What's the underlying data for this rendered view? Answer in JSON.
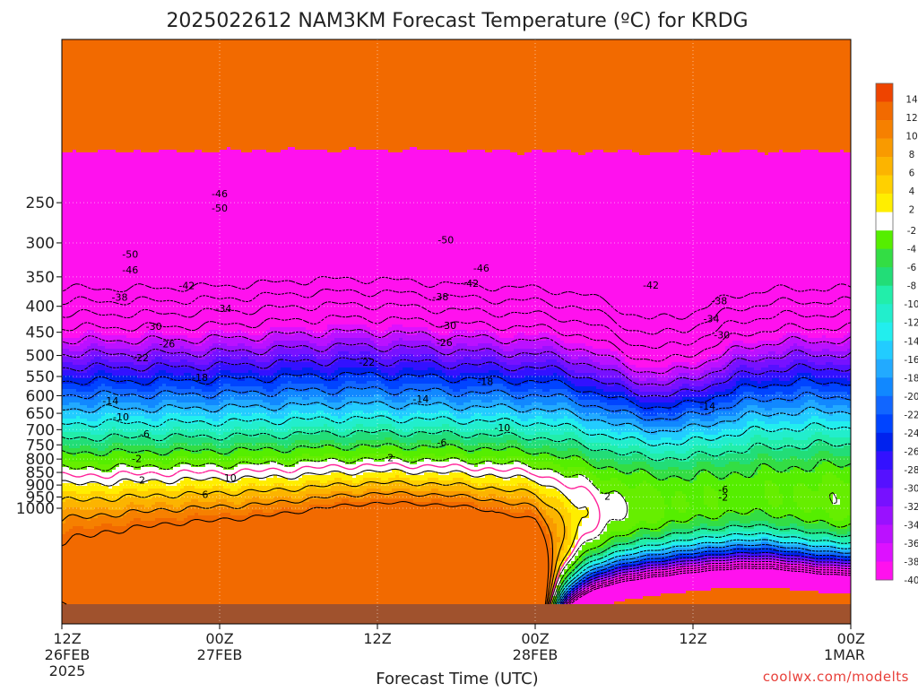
{
  "chart_data": {
    "type": "heatmap",
    "title": "2025022612 NAM3KM Forecast Temperature (ºC) for KRDG",
    "xlabel": "Forecast Time (UTC)",
    "ylabel": "",
    "watermark": "coolwx.com/modelts",
    "x_ticks": [
      {
        "hour": 0,
        "lines": [
          "12Z",
          "26FEB",
          "2025"
        ]
      },
      {
        "hour": 12,
        "lines": [
          "00Z",
          "27FEB"
        ]
      },
      {
        "hour": 24,
        "lines": [
          "12Z"
        ]
      },
      {
        "hour": 36,
        "lines": [
          "00Z",
          "28FEB"
        ]
      },
      {
        "hour": 48,
        "lines": [
          "12Z"
        ]
      },
      {
        "hour": 60,
        "lines": [
          "00Z",
          "1MAR"
        ]
      }
    ],
    "y_scale": "log",
    "y_ticks": [
      250,
      300,
      350,
      400,
      450,
      500,
      550,
      600,
      650,
      700,
      750,
      800,
      850,
      900,
      950,
      1000
    ],
    "colorbar": {
      "labels": [
        "14",
        "12",
        "10",
        "8",
        "6",
        "4",
        "2",
        "-2",
        "-4",
        "-6",
        "-8",
        "-10",
        "-12",
        "-14",
        "-16",
        "-18",
        "-20",
        "-22",
        "-24",
        "-26",
        "-28",
        "-30",
        "-32",
        "-34",
        "-36",
        "-38",
        "-40"
      ],
      "colors": [
        "#ee4400",
        "#f26a00",
        "#f68000",
        "#f99a00",
        "#fcb400",
        "#ffd000",
        "#ffee00",
        "#ffffff",
        "#55ee00",
        "#33dd44",
        "#22dd77",
        "#22eeaa",
        "#22eecc",
        "#22eeee",
        "#22ccff",
        "#22aaff",
        "#1188ff",
        "#1166ff",
        "#0044ff",
        "#0022ee",
        "#3311ff",
        "#5511ff",
        "#7711ff",
        "#9911ff",
        "#bb11ff",
        "#dd11ff",
        "#ff11ee"
      ]
    },
    "fill_bands": [
      {
        "from": -100,
        "to": -40,
        "color": "#ff11ee"
      },
      {
        "from": -40,
        "to": -38,
        "color": "#dd11ff"
      },
      {
        "from": -38,
        "to": -36,
        "color": "#bb11ff"
      },
      {
        "from": -36,
        "to": -34,
        "color": "#9911ff"
      },
      {
        "from": -34,
        "to": -32,
        "color": "#7711ff"
      },
      {
        "from": -32,
        "to": -30,
        "color": "#5511ff"
      },
      {
        "from": -30,
        "to": -28,
        "color": "#3311ff"
      },
      {
        "from": -28,
        "to": -26,
        "color": "#0022ee"
      },
      {
        "from": -26,
        "to": -24,
        "color": "#0044ff"
      },
      {
        "from": -24,
        "to": -22,
        "color": "#1166ff"
      },
      {
        "from": -22,
        "to": -20,
        "color": "#1188ff"
      },
      {
        "from": -20,
        "to": -18,
        "color": "#22aaff"
      },
      {
        "from": -18,
        "to": -16,
        "color": "#22ccff"
      },
      {
        "from": -16,
        "to": -14,
        "color": "#22eeee"
      },
      {
        "from": -14,
        "to": -12,
        "color": "#22eecc"
      },
      {
        "from": -12,
        "to": -10,
        "color": "#22eeaa"
      },
      {
        "from": -10,
        "to": -8,
        "color": "#22dd77"
      },
      {
        "from": -8,
        "to": -6,
        "color": "#33dd44"
      },
      {
        "from": -6,
        "to": -4,
        "color": "#55ee00"
      },
      {
        "from": -4,
        "to": -2,
        "color": "#66ee00"
      },
      {
        "from": -2,
        "to": 2,
        "color": "#ffffff"
      },
      {
        "from": 2,
        "to": 4,
        "color": "#ffee00"
      },
      {
        "from": 4,
        "to": 6,
        "color": "#ffd000"
      },
      {
        "from": 6,
        "to": 8,
        "color": "#fcb400"
      },
      {
        "from": 8,
        "to": 10,
        "color": "#f99a00"
      },
      {
        "from": 10,
        "to": 12,
        "color": "#f68000"
      },
      {
        "from": 12,
        "to": 100,
        "color": "#f26a00"
      }
    ],
    "ground_color": "#a0522d",
    "freezing_line_color": "#ff2299",
    "contour_labels": [
      {
        "t": 12,
        "p": 240,
        "v": "-46"
      },
      {
        "t": 12,
        "p": 256,
        "v": "-50"
      },
      {
        "t": 5.2,
        "p": 316,
        "v": "-50"
      },
      {
        "t": 5.2,
        "p": 339,
        "v": "-46"
      },
      {
        "t": 9.5,
        "p": 364,
        "v": "-42"
      },
      {
        "t": 4.4,
        "p": 384,
        "v": "-38"
      },
      {
        "t": 12.3,
        "p": 404,
        "v": "-34"
      },
      {
        "t": 7,
        "p": 438,
        "v": "-30"
      },
      {
        "t": 8,
        "p": 474,
        "v": "-26"
      },
      {
        "t": 6,
        "p": 505,
        "v": "-22"
      },
      {
        "t": 10.5,
        "p": 552,
        "v": "-18"
      },
      {
        "t": 3.7,
        "p": 614,
        "v": "-14"
      },
      {
        "t": 4.5,
        "p": 660,
        "v": "-10"
      },
      {
        "t": 6.3,
        "p": 713,
        "v": "-6"
      },
      {
        "t": 5.7,
        "p": 798,
        "v": "-2"
      },
      {
        "t": 6.1,
        "p": 880,
        "v": "2"
      },
      {
        "t": 12.8,
        "p": 870,
        "v": "10"
      },
      {
        "t": 10.9,
        "p": 938,
        "v": "6"
      },
      {
        "t": 25,
        "p": 794,
        "v": "2"
      },
      {
        "t": 29.2,
        "p": 296,
        "v": "-50"
      },
      {
        "t": 31.9,
        "p": 336,
        "v": "-46"
      },
      {
        "t": 31.1,
        "p": 360,
        "v": "-42"
      },
      {
        "t": 28.8,
        "p": 383,
        "v": "-38"
      },
      {
        "t": 29.4,
        "p": 436,
        "v": "-30"
      },
      {
        "t": 29.1,
        "p": 471,
        "v": "-26"
      },
      {
        "t": 23.2,
        "p": 515,
        "v": "-22"
      },
      {
        "t": 32.2,
        "p": 562,
        "v": "-18"
      },
      {
        "t": 27.3,
        "p": 609,
        "v": "-14"
      },
      {
        "t": 33.5,
        "p": 693,
        "v": "-10"
      },
      {
        "t": 28.9,
        "p": 742,
        "v": "-6"
      },
      {
        "t": 44.8,
        "p": 363,
        "v": "-42"
      },
      {
        "t": 50,
        "p": 390,
        "v": "-38"
      },
      {
        "t": 49.4,
        "p": 423,
        "v": "-34"
      },
      {
        "t": 50.2,
        "p": 455,
        "v": "-30"
      },
      {
        "t": 49.1,
        "p": 629,
        "v": "-14"
      },
      {
        "t": 50.3,
        "p": 918,
        "v": "-6"
      },
      {
        "t": 50.3,
        "p": 950,
        "v": "-2"
      },
      {
        "t": 41.5,
        "p": 946,
        "v": "2"
      }
    ]
  }
}
